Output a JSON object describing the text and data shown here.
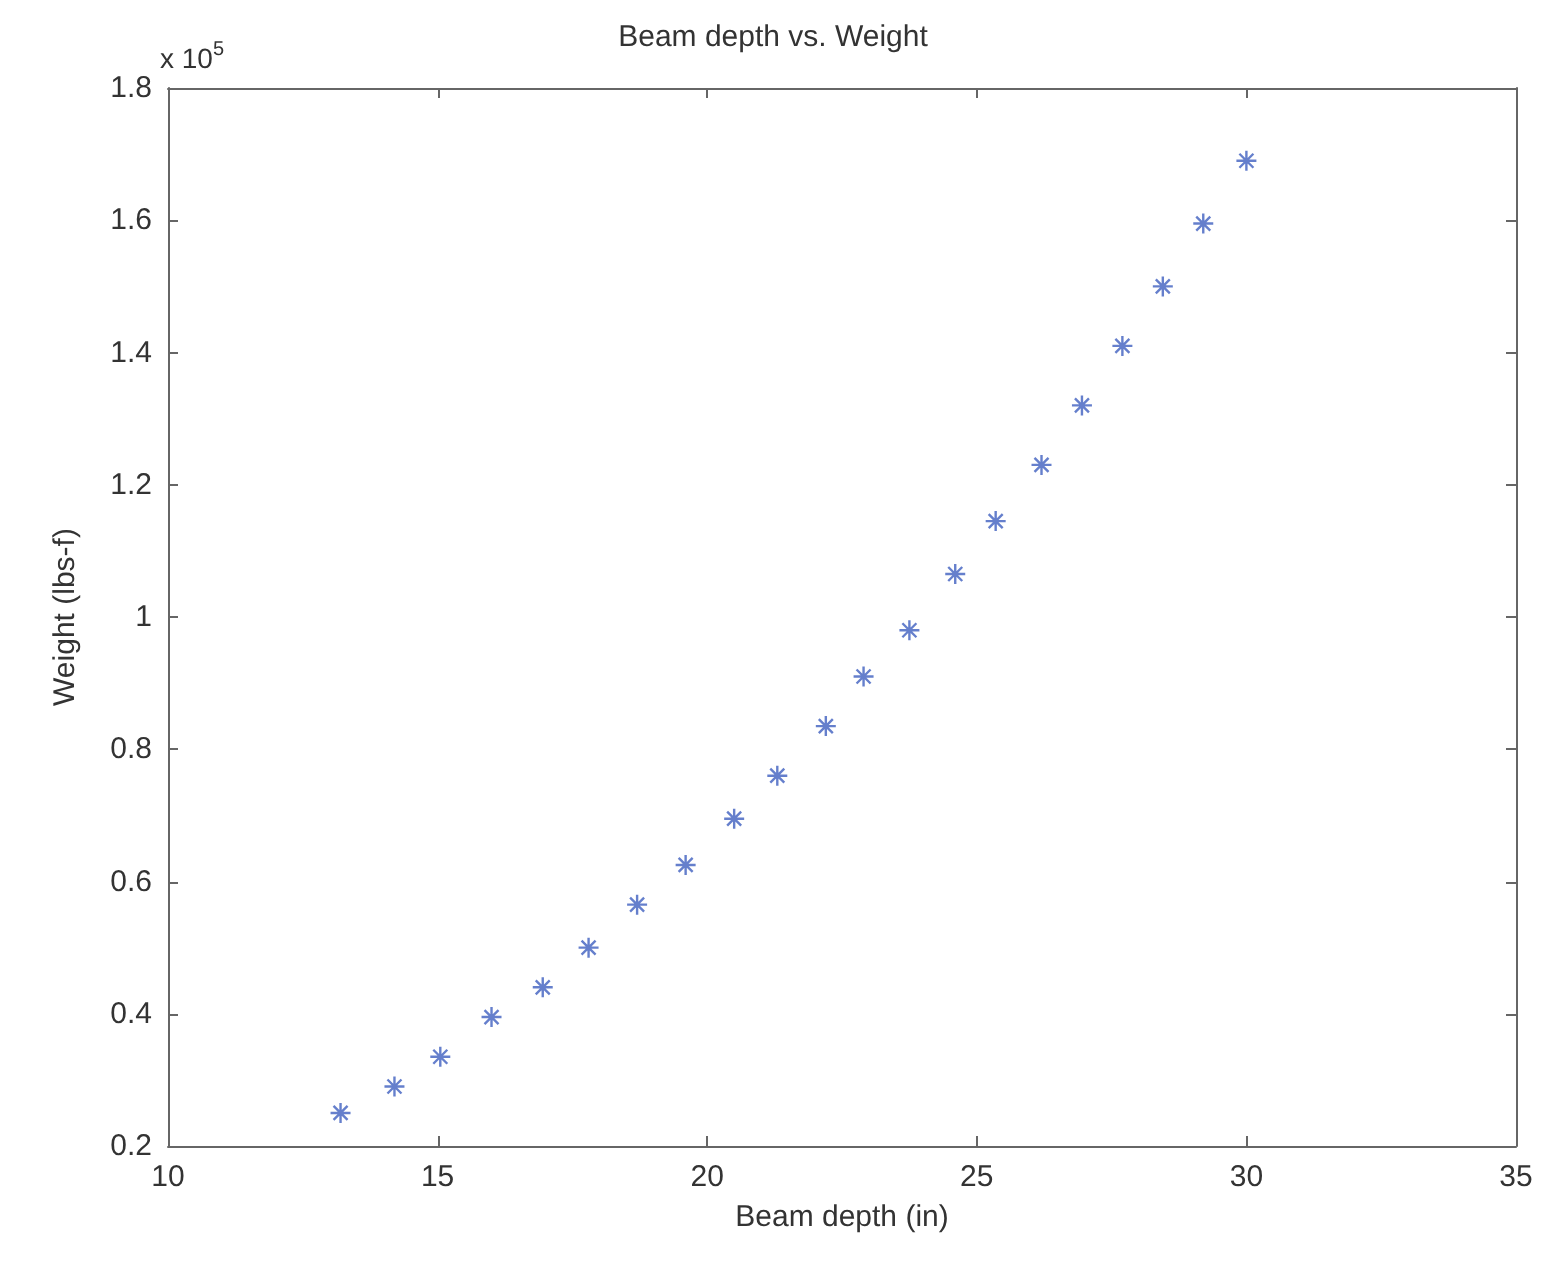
{
  "chart_data": {
    "type": "scatter",
    "title": "Beam depth vs. Weight",
    "xlabel": "Beam depth (in)",
    "ylabel": "Weight (lbs-f)",
    "annotations": [
      "x 10$^{5}$"
    ],
    "x": [
      13.2,
      14.2,
      15.05,
      16.0,
      16.95,
      17.8,
      18.7,
      19.6,
      20.5,
      21.3,
      22.2,
      22.9,
      23.75,
      24.6,
      25.35,
      26.2,
      26.95,
      27.7,
      28.45,
      29.2,
      30.0
    ],
    "series": [
      {
        "color": "#3f5fbf",
        "values": [
          0.25,
          0.29,
          0.335,
          0.395,
          0.44,
          0.5,
          0.565,
          0.625,
          0.695,
          0.76,
          0.835,
          0.91,
          0.98,
          1.065,
          1.145,
          1.23,
          1.32,
          1.41,
          1.5,
          1.595,
          1.69
        ]
      }
    ],
    "xlim": [
      10,
      35
    ],
    "xticks": [
      10,
      15,
      20,
      25,
      30,
      35
    ],
    "ylim": [
      0.2,
      1.8
    ],
    "yticks": [
      0.2,
      0.4,
      0.6,
      0.8,
      1,
      1.2,
      1.4,
      1.6,
      1.8
    ],
    "grid": false,
    "marker": "cross"
  }
}
